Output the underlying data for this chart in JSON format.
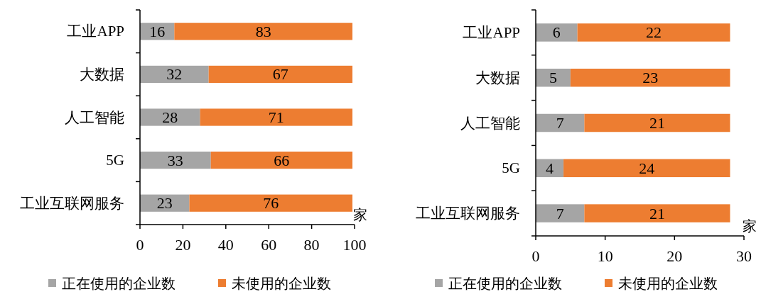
{
  "chart_data": [
    {
      "type": "bar",
      "orientation": "horizontal",
      "stacked": true,
      "categories": [
        "工业APP",
        "大数据",
        "人工智能",
        "5G",
        "工业互联网服务"
      ],
      "series": [
        {
          "name": "正在使用的企业数",
          "color": "#a5a5a5",
          "values": [
            16,
            32,
            28,
            33,
            23
          ]
        },
        {
          "name": "未使用的企业数",
          "color": "#ed7d31",
          "values": [
            83,
            67,
            71,
            66,
            76
          ]
        }
      ],
      "xlim": [
        0,
        100
      ],
      "xticks": [
        0,
        20,
        40,
        60,
        80,
        100
      ],
      "xlabel": "家",
      "data_labels": true,
      "legend": "bottom"
    },
    {
      "type": "bar",
      "orientation": "horizontal",
      "stacked": true,
      "categories": [
        "工业APP",
        "大数据",
        "人工智能",
        "5G",
        "工业互联网服务"
      ],
      "series": [
        {
          "name": "正在使用的企业数",
          "color": "#a5a5a5",
          "values": [
            6,
            5,
            7,
            4,
            7
          ]
        },
        {
          "name": "未使用的企业数",
          "color": "#ed7d31",
          "values": [
            22,
            23,
            21,
            24,
            21
          ]
        }
      ],
      "xlim": [
        0,
        30
      ],
      "xticks": [
        0,
        10,
        20,
        30
      ],
      "xlabel": "家",
      "data_labels": true,
      "legend": "bottom"
    }
  ]
}
